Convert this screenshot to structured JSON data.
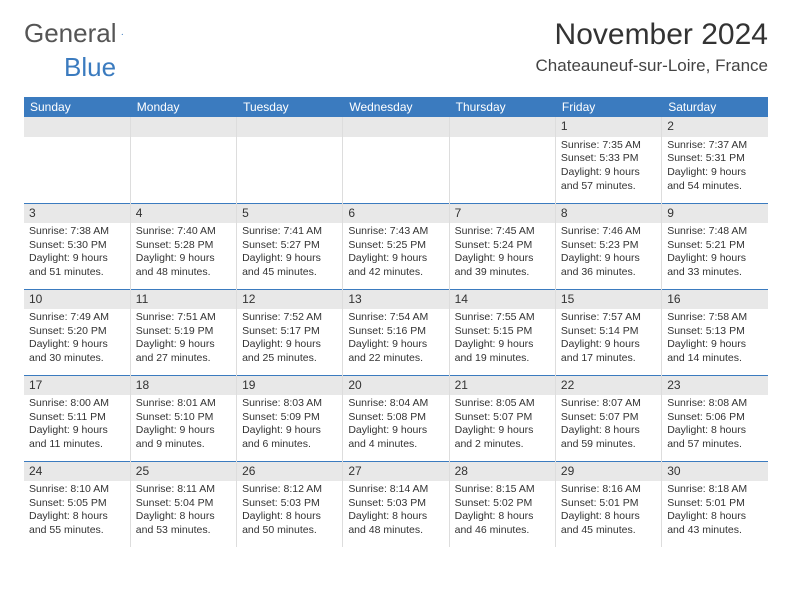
{
  "logo": {
    "text1": "General",
    "text2": "Blue"
  },
  "title": "November 2024",
  "location": "Chateauneuf-sur-Loire, France",
  "colors": {
    "header_bg": "#3b7bbf",
    "header_text": "#ffffff",
    "daynum_bg": "#e8e8e8",
    "border": "#3b7bbf",
    "cell_border": "#dddddd",
    "text": "#333333"
  },
  "weekdays": [
    "Sunday",
    "Monday",
    "Tuesday",
    "Wednesday",
    "Thursday",
    "Friday",
    "Saturday"
  ],
  "weeks": [
    [
      null,
      null,
      null,
      null,
      null,
      {
        "n": "1",
        "sr": "7:35 AM",
        "ss": "5:33 PM",
        "dl": "9 hours and 57 minutes."
      },
      {
        "n": "2",
        "sr": "7:37 AM",
        "ss": "5:31 PM",
        "dl": "9 hours and 54 minutes."
      }
    ],
    [
      {
        "n": "3",
        "sr": "7:38 AM",
        "ss": "5:30 PM",
        "dl": "9 hours and 51 minutes."
      },
      {
        "n": "4",
        "sr": "7:40 AM",
        "ss": "5:28 PM",
        "dl": "9 hours and 48 minutes."
      },
      {
        "n": "5",
        "sr": "7:41 AM",
        "ss": "5:27 PM",
        "dl": "9 hours and 45 minutes."
      },
      {
        "n": "6",
        "sr": "7:43 AM",
        "ss": "5:25 PM",
        "dl": "9 hours and 42 minutes."
      },
      {
        "n": "7",
        "sr": "7:45 AM",
        "ss": "5:24 PM",
        "dl": "9 hours and 39 minutes."
      },
      {
        "n": "8",
        "sr": "7:46 AM",
        "ss": "5:23 PM",
        "dl": "9 hours and 36 minutes."
      },
      {
        "n": "9",
        "sr": "7:48 AM",
        "ss": "5:21 PM",
        "dl": "9 hours and 33 minutes."
      }
    ],
    [
      {
        "n": "10",
        "sr": "7:49 AM",
        "ss": "5:20 PM",
        "dl": "9 hours and 30 minutes."
      },
      {
        "n": "11",
        "sr": "7:51 AM",
        "ss": "5:19 PM",
        "dl": "9 hours and 27 minutes."
      },
      {
        "n": "12",
        "sr": "7:52 AM",
        "ss": "5:17 PM",
        "dl": "9 hours and 25 minutes."
      },
      {
        "n": "13",
        "sr": "7:54 AM",
        "ss": "5:16 PM",
        "dl": "9 hours and 22 minutes."
      },
      {
        "n": "14",
        "sr": "7:55 AM",
        "ss": "5:15 PM",
        "dl": "9 hours and 19 minutes."
      },
      {
        "n": "15",
        "sr": "7:57 AM",
        "ss": "5:14 PM",
        "dl": "9 hours and 17 minutes."
      },
      {
        "n": "16",
        "sr": "7:58 AM",
        "ss": "5:13 PM",
        "dl": "9 hours and 14 minutes."
      }
    ],
    [
      {
        "n": "17",
        "sr": "8:00 AM",
        "ss": "5:11 PM",
        "dl": "9 hours and 11 minutes."
      },
      {
        "n": "18",
        "sr": "8:01 AM",
        "ss": "5:10 PM",
        "dl": "9 hours and 9 minutes."
      },
      {
        "n": "19",
        "sr": "8:03 AM",
        "ss": "5:09 PM",
        "dl": "9 hours and 6 minutes."
      },
      {
        "n": "20",
        "sr": "8:04 AM",
        "ss": "5:08 PM",
        "dl": "9 hours and 4 minutes."
      },
      {
        "n": "21",
        "sr": "8:05 AM",
        "ss": "5:07 PM",
        "dl": "9 hours and 2 minutes."
      },
      {
        "n": "22",
        "sr": "8:07 AM",
        "ss": "5:07 PM",
        "dl": "8 hours and 59 minutes."
      },
      {
        "n": "23",
        "sr": "8:08 AM",
        "ss": "5:06 PM",
        "dl": "8 hours and 57 minutes."
      }
    ],
    [
      {
        "n": "24",
        "sr": "8:10 AM",
        "ss": "5:05 PM",
        "dl": "8 hours and 55 minutes."
      },
      {
        "n": "25",
        "sr": "8:11 AM",
        "ss": "5:04 PM",
        "dl": "8 hours and 53 minutes."
      },
      {
        "n": "26",
        "sr": "8:12 AM",
        "ss": "5:03 PM",
        "dl": "8 hours and 50 minutes."
      },
      {
        "n": "27",
        "sr": "8:14 AM",
        "ss": "5:03 PM",
        "dl": "8 hours and 48 minutes."
      },
      {
        "n": "28",
        "sr": "8:15 AM",
        "ss": "5:02 PM",
        "dl": "8 hours and 46 minutes."
      },
      {
        "n": "29",
        "sr": "8:16 AM",
        "ss": "5:01 PM",
        "dl": "8 hours and 45 minutes."
      },
      {
        "n": "30",
        "sr": "8:18 AM",
        "ss": "5:01 PM",
        "dl": "8 hours and 43 minutes."
      }
    ]
  ],
  "labels": {
    "sunrise": "Sunrise: ",
    "sunset": "Sunset: ",
    "daylight": "Daylight: "
  }
}
